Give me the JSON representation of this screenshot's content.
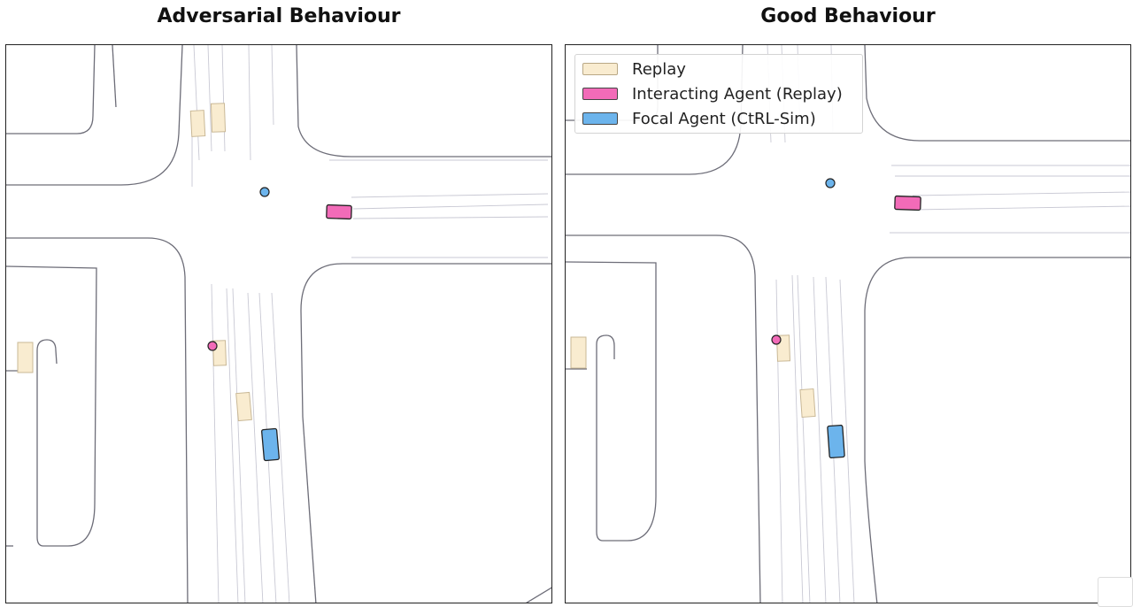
{
  "titles": {
    "left": "Adversarial Behaviour",
    "right": "Good Behaviour"
  },
  "legend": {
    "items": [
      {
        "label": "Replay",
        "color": "#f9ecd0"
      },
      {
        "label": "Interacting Agent (Replay)",
        "color": "#f26bb8"
      },
      {
        "label": "Focal Agent (CtRL-Sim)",
        "color": "#6cb4ec"
      }
    ]
  },
  "colors": {
    "road_edge": "#6d6d78",
    "lane_line": "#c9c9d4",
    "replay_fill": "#f9ecd0",
    "replay_stroke": "#c9b896",
    "interacting": "#f26bb8",
    "focal": "#6cb4ec",
    "outline": "#222222"
  },
  "icons": {
    "replay": "beige-rectangle",
    "interacting": "pink-rectangle",
    "focal": "blue-rectangle",
    "goal_marker": "circle"
  }
}
